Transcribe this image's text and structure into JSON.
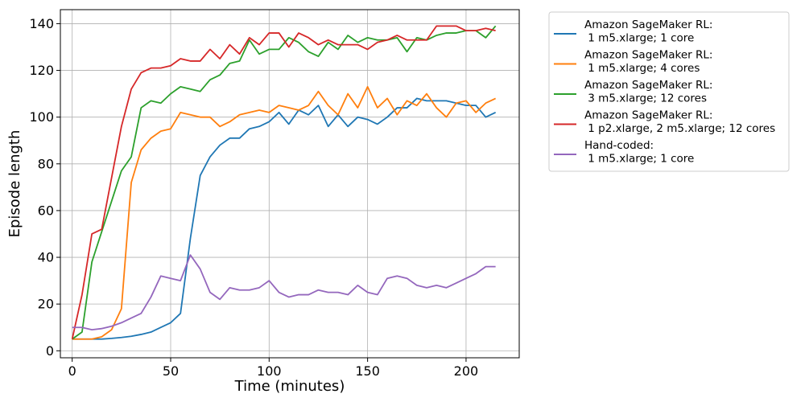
{
  "chart_data": {
    "type": "line",
    "title": "",
    "xlabel": "Time (minutes)",
    "ylabel": "Episode length",
    "xlim": [
      -6,
      227
    ],
    "ylim": [
      -3,
      146
    ],
    "xticks": [
      0,
      50,
      100,
      150,
      200
    ],
    "yticks": [
      0,
      20,
      40,
      60,
      80,
      100,
      120,
      140
    ],
    "grid": true,
    "legend_position": "outside-right",
    "x": [
      0,
      5,
      10,
      15,
      20,
      25,
      30,
      35,
      40,
      45,
      50,
      55,
      60,
      65,
      70,
      75,
      80,
      85,
      90,
      95,
      100,
      105,
      110,
      115,
      120,
      125,
      130,
      135,
      140,
      145,
      150,
      155,
      160,
      165,
      170,
      175,
      180,
      185,
      190,
      195,
      200,
      205,
      210,
      215
    ],
    "series": [
      {
        "name": "Amazon SageMaker RL:\n 1 m5.xlarge; 1 core",
        "color": "#1f77b4",
        "values": [
          5,
          5,
          5,
          5,
          5.3,
          5.7,
          6.2,
          7,
          8,
          10,
          12,
          16,
          48,
          75,
          83,
          88,
          91,
          91,
          95,
          96,
          98,
          102,
          97,
          103,
          101,
          105,
          96,
          101,
          96,
          100,
          99,
          97,
          100,
          104,
          104,
          108,
          107,
          107,
          107,
          106,
          105,
          105,
          100,
          102
        ]
      },
      {
        "name": "Amazon SageMaker RL:\n 1 m5.xlarge; 4 cores",
        "color": "#ff7f0e",
        "values": [
          5,
          5,
          5,
          6,
          9,
          18,
          72,
          86,
          91,
          94,
          95,
          102,
          101,
          100,
          100,
          96,
          98,
          101,
          102,
          103,
          102,
          105,
          104,
          103,
          105,
          111,
          105,
          101,
          110,
          104,
          113,
          104,
          108,
          101,
          107,
          105,
          110,
          104,
          100,
          106,
          107,
          102,
          106,
          108
        ]
      },
      {
        "name": "Amazon SageMaker RL:\n 3 m5.xlarge; 12 cores",
        "color": "#2ca02c",
        "values": [
          5,
          8,
          38,
          51,
          64,
          77,
          83,
          104,
          107,
          106,
          110,
          113,
          112,
          111,
          116,
          118,
          123,
          124,
          133,
          127,
          129,
          129,
          134,
          132,
          128,
          126,
          132,
          129,
          135,
          132,
          134,
          133,
          133,
          134,
          128,
          134,
          133,
          135,
          136,
          136,
          137,
          137,
          134,
          139
        ]
      },
      {
        "name": "Amazon SageMaker RL:\n 1 p2.xlarge, 2 m5.xlarge; 12 cores",
        "color": "#d62728",
        "values": [
          5,
          24,
          50,
          52,
          74,
          96,
          112,
          119,
          121,
          121,
          122,
          125,
          124,
          124,
          129,
          125,
          131,
          127,
          134,
          131,
          136,
          136,
          130,
          136,
          134,
          131,
          133,
          131,
          131,
          131,
          129,
          132,
          133,
          135,
          133,
          133,
          133,
          139,
          139,
          139,
          137,
          137,
          138,
          137
        ]
      },
      {
        "name": "Hand-coded:\n 1 m5.xlarge; 1 core",
        "color": "#9467bd",
        "values": [
          10,
          10,
          9,
          9.5,
          10.5,
          12,
          14,
          16,
          23,
          32,
          31,
          30,
          41,
          35,
          25,
          22,
          27,
          26,
          26,
          27,
          30,
          25,
          23,
          24,
          24,
          26,
          25,
          25,
          24,
          28,
          25,
          24,
          31,
          32,
          31,
          28,
          27,
          28,
          27,
          29,
          31,
          33,
          36,
          36
        ]
      }
    ]
  }
}
